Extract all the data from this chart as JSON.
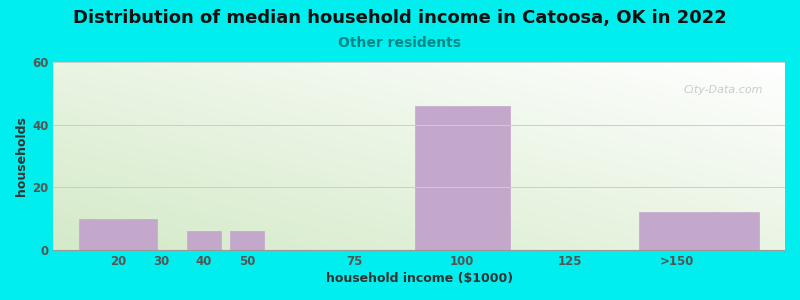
{
  "title": "Distribution of median household income in Catoosa, OK in 2022",
  "subtitle": "Other residents",
  "xlabel": "household income ($1000)",
  "ylabel": "households",
  "bg_color": "#00EEEE",
  "bar_color": "#C4A8CC",
  "bar_edge_color": "#C4A8CC",
  "xlim": [
    5,
    175
  ],
  "ylim": [
    0,
    60
  ],
  "yticks": [
    0,
    20,
    40,
    60
  ],
  "xtick_positions": [
    20,
    30,
    40,
    50,
    75,
    100,
    125,
    150
  ],
  "xtick_labels": [
    "20",
    "30",
    "40",
    "50",
    "75",
    "100",
    "125",
    ">150"
  ],
  "bar_centers": [
    20,
    40,
    50,
    100,
    155
  ],
  "bar_heights": [
    10,
    6,
    6,
    46,
    12
  ],
  "bar_widths": [
    18,
    8,
    8,
    22,
    28
  ],
  "watermark": "City-Data.com",
  "title_fontsize": 13,
  "subtitle_fontsize": 10,
  "axis_label_fontsize": 9,
  "tick_fontsize": 8.5,
  "gradient_colors": [
    "#d4eac8",
    "#f8fff4",
    "#ffffff"
  ],
  "grid_color": "#cccccc",
  "title_color": "#111111",
  "subtitle_color": "#008888",
  "tick_color": "#555555",
  "axis_label_color": "#333333"
}
